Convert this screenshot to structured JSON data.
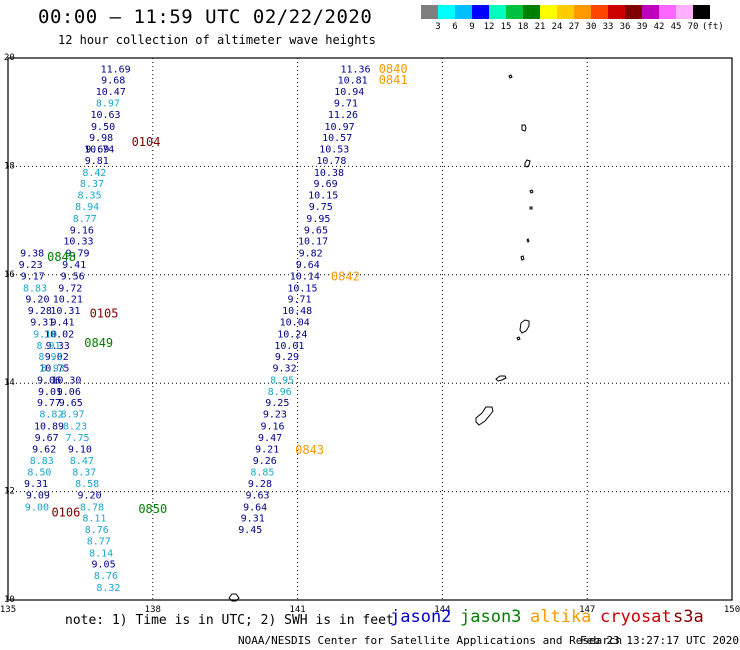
{
  "header": {
    "title": "00:00 – 11:59 UTC 02/22/2020",
    "subtitle": "12 hour collection of altimeter wave heights"
  },
  "colorbar": {
    "unit": "(ft)",
    "ticks": [
      "3",
      "6",
      "9",
      "12",
      "15",
      "18",
      "21",
      "24",
      "27",
      "30",
      "33",
      "36",
      "39",
      "42",
      "45",
      "70"
    ],
    "colors": [
      "#7f7f7f",
      "#00ffff",
      "#00bfff",
      "#0000ff",
      "#00ffbf",
      "#00c040",
      "#008000",
      "#ffff00",
      "#ffcc00",
      "#ff9900",
      "#ff4400",
      "#cc0000",
      "#800000",
      "#c000c0",
      "#ff66ff",
      "#ffb0ff",
      "#000000"
    ]
  },
  "map": {
    "lon_range": [
      135,
      150
    ],
    "lat_range": [
      10,
      20
    ],
    "lon_ticks": [
      "135",
      "138",
      "141",
      "144",
      "147",
      "150"
    ],
    "lat_ticks": [
      "20",
      "18",
      "16",
      "14",
      "12",
      "10"
    ],
    "grid_lines": "dotted"
  },
  "satellite_colors": {
    "jason2": "#00008b",
    "jason3": "#008000",
    "altika": "#ff9900",
    "cryosat": "#cc0000",
    "s3a": "#800000",
    "light": "#1aa7cc",
    "dark": "#00008b"
  },
  "passes": [
    {
      "label": "0840",
      "sat": "altika",
      "lon": 142.68,
      "lat": 19.8
    },
    {
      "label": "0841",
      "sat": "altika",
      "lon": 142.68,
      "lat": 19.59
    },
    {
      "label": "0842",
      "sat": "altika",
      "lon": 141.69,
      "lat": 15.97
    },
    {
      "label": "0843",
      "sat": "altika",
      "lon": 140.95,
      "lat": 12.77
    },
    {
      "label": "0104",
      "sat": "s3a",
      "lon": 137.56,
      "lat": 18.45
    },
    {
      "label": "0105",
      "sat": "s3a",
      "lon": 136.69,
      "lat": 15.29
    },
    {
      "label": "0106",
      "sat": "s3a",
      "lon": 135.9,
      "lat": 11.61
    },
    {
      "label": "0848",
      "sat": "jason3",
      "lon": 135.81,
      "lat": 16.33
    },
    {
      "label": "0849",
      "sat": "jason3",
      "lon": 136.58,
      "lat": 14.74
    },
    {
      "label": "0850",
      "sat": "jason3",
      "lon": 137.7,
      "lat": 11.68
    }
  ],
  "tracks": [
    {
      "name": "track-141",
      "points": [
        {
          "v": "11.36",
          "lon": 142.2,
          "lat": 19.8,
          "c": "dark"
        },
        {
          "v": "10.81",
          "lon": 142.14,
          "lat": 19.59,
          "c": "dark"
        },
        {
          "v": "10.94",
          "lon": 142.07,
          "lat": 19.38,
          "c": "dark"
        },
        {
          "v": "9.71",
          "lon": 142.0,
          "lat": 19.17,
          "c": "dark"
        },
        {
          "v": "11.26",
          "lon": 141.94,
          "lat": 18.96,
          "c": "dark"
        },
        {
          "v": "10.97",
          "lon": 141.87,
          "lat": 18.74,
          "c": "dark"
        },
        {
          "v": "10.57",
          "lon": 141.82,
          "lat": 18.53,
          "c": "dark"
        },
        {
          "v": "10.53",
          "lon": 141.76,
          "lat": 18.32,
          "c": "dark"
        },
        {
          "v": "10.78",
          "lon": 141.7,
          "lat": 18.11,
          "c": "dark"
        },
        {
          "v": "10.38",
          "lon": 141.65,
          "lat": 17.89,
          "c": "dark"
        },
        {
          "v": "9.69",
          "lon": 141.58,
          "lat": 17.68,
          "c": "dark"
        },
        {
          "v": "10.15",
          "lon": 141.53,
          "lat": 17.47,
          "c": "dark"
        },
        {
          "v": "9.75",
          "lon": 141.48,
          "lat": 17.26,
          "c": "dark"
        },
        {
          "v": "9.95",
          "lon": 141.43,
          "lat": 17.04,
          "c": "dark"
        },
        {
          "v": "9.65",
          "lon": 141.38,
          "lat": 16.83,
          "c": "dark"
        },
        {
          "v": "10.17",
          "lon": 141.32,
          "lat": 16.62,
          "c": "dark"
        },
        {
          "v": "9.82",
          "lon": 141.27,
          "lat": 16.4,
          "c": "dark"
        },
        {
          "v": "9.64",
          "lon": 141.21,
          "lat": 16.19,
          "c": "dark"
        },
        {
          "v": "10.14",
          "lon": 141.15,
          "lat": 15.98,
          "c": "dark"
        },
        {
          "v": "10.15",
          "lon": 141.1,
          "lat": 15.76,
          "c": "dark"
        },
        {
          "v": "9.71",
          "lon": 141.04,
          "lat": 15.55,
          "c": "dark"
        },
        {
          "v": "10.48",
          "lon": 140.99,
          "lat": 15.34,
          "c": "dark"
        },
        {
          "v": "10.04",
          "lon": 140.94,
          "lat": 15.13,
          "c": "dark"
        },
        {
          "v": "10.24",
          "lon": 140.89,
          "lat": 14.91,
          "c": "dark"
        },
        {
          "v": "10.01",
          "lon": 140.83,
          "lat": 14.7,
          "c": "dark"
        },
        {
          "v": "9.29",
          "lon": 140.78,
          "lat": 14.49,
          "c": "dark"
        },
        {
          "v": "9.32",
          "lon": 140.73,
          "lat": 14.28,
          "c": "dark"
        },
        {
          "v": "8.95",
          "lon": 140.68,
          "lat": 14.06,
          "c": "light"
        },
        {
          "v": "8.96",
          "lon": 140.63,
          "lat": 13.85,
          "c": "light"
        },
        {
          "v": "9.25",
          "lon": 140.58,
          "lat": 13.64,
          "c": "dark"
        },
        {
          "v": "9.23",
          "lon": 140.53,
          "lat": 13.43,
          "c": "dark"
        },
        {
          "v": "9.16",
          "lon": 140.48,
          "lat": 13.21,
          "c": "dark"
        },
        {
          "v": "9.47",
          "lon": 140.43,
          "lat": 13.0,
          "c": "dark"
        },
        {
          "v": "9.21",
          "lon": 140.37,
          "lat": 12.79,
          "c": "dark"
        },
        {
          "v": "9.26",
          "lon": 140.32,
          "lat": 12.57,
          "c": "dark"
        },
        {
          "v": "8.85",
          "lon": 140.27,
          "lat": 12.36,
          "c": "light"
        },
        {
          "v": "9.28",
          "lon": 140.22,
          "lat": 12.15,
          "c": "dark"
        },
        {
          "v": "9.63",
          "lon": 140.17,
          "lat": 11.94,
          "c": "dark"
        },
        {
          "v": "9.64",
          "lon": 140.12,
          "lat": 11.72,
          "c": "dark"
        },
        {
          "v": "9.31",
          "lon": 140.07,
          "lat": 11.51,
          "c": "dark"
        },
        {
          "v": "9.45",
          "lon": 140.02,
          "lat": 11.3,
          "c": "dark"
        }
      ]
    },
    {
      "name": "track-0104",
      "points": [
        {
          "v": "11.69",
          "lon": 137.23,
          "lat": 19.8,
          "c": "dark"
        },
        {
          "v": "9.68",
          "lon": 137.18,
          "lat": 19.59,
          "c": "dark"
        },
        {
          "v": "10.47",
          "lon": 137.13,
          "lat": 19.38,
          "c": "dark"
        },
        {
          "v": "8.97",
          "lon": 137.07,
          "lat": 19.17,
          "c": "light"
        },
        {
          "v": "10.63",
          "lon": 137.02,
          "lat": 18.96,
          "c": "dark"
        },
        {
          "v": "9.50",
          "lon": 136.97,
          "lat": 18.74,
          "c": "dark"
        },
        {
          "v": "9.98",
          "lon": 136.93,
          "lat": 18.53,
          "c": "dark"
        },
        {
          "v": "10.74",
          "lon": 136.89,
          "lat": 18.32,
          "c": "dark"
        },
        {
          "v": "9.81",
          "lon": 136.84,
          "lat": 18.11,
          "c": "dark"
        },
        {
          "v": "8.42",
          "lon": 136.79,
          "lat": 17.89,
          "c": "light"
        },
        {
          "v": "8.37",
          "lon": 136.74,
          "lat": 17.68,
          "c": "light"
        },
        {
          "v": "8.35",
          "lon": 136.69,
          "lat": 17.47,
          "c": "light"
        },
        {
          "v": "8.94",
          "lon": 136.64,
          "lat": 17.26,
          "c": "light"
        },
        {
          "v": "8.77",
          "lon": 136.59,
          "lat": 17.04,
          "c": "light"
        },
        {
          "v": "9.16",
          "lon": 136.53,
          "lat": 16.83,
          "c": "dark"
        },
        {
          "v": "10.33",
          "lon": 136.46,
          "lat": 16.62,
          "c": "dark"
        },
        {
          "v": "9.79",
          "lon": 136.44,
          "lat": 16.4,
          "c": "dark"
        },
        {
          "v": "9.41",
          "lon": 136.37,
          "lat": 16.19,
          "c": "dark"
        },
        {
          "v": "9.56",
          "lon": 136.34,
          "lat": 15.98,
          "c": "dark"
        },
        {
          "v": "9.72",
          "lon": 136.29,
          "lat": 15.76,
          "c": "dark"
        },
        {
          "v": "10.21",
          "lon": 136.24,
          "lat": 15.55,
          "c": "dark"
        },
        {
          "v": "10.31",
          "lon": 136.19,
          "lat": 15.34,
          "c": "dark"
        },
        {
          "v": "9.41",
          "lon": 136.13,
          "lat": 15.13,
          "c": "dark"
        },
        {
          "v": "10.02",
          "lon": 136.06,
          "lat": 14.91,
          "c": "dark"
        },
        {
          "v": "9.33",
          "lon": 136.03,
          "lat": 14.7,
          "c": "dark"
        },
        {
          "v": "9.02",
          "lon": 136.01,
          "lat": 14.49,
          "c": "dark"
        },
        {
          "v": "10.75",
          "lon": 135.96,
          "lat": 14.28,
          "c": "dark"
        },
        {
          "v": "10.30",
          "lon": 136.21,
          "lat": 14.06,
          "c": "dark"
        },
        {
          "v": "9.06",
          "lon": 136.26,
          "lat": 13.85,
          "c": "dark"
        },
        {
          "v": "9.65",
          "lon": 136.3,
          "lat": 13.64,
          "c": "dark"
        },
        {
          "v": "8.97",
          "lon": 136.34,
          "lat": 13.43,
          "c": "light"
        },
        {
          "v": "8.23",
          "lon": 136.39,
          "lat": 13.21,
          "c": "light"
        },
        {
          "v": "7.75",
          "lon": 136.44,
          "lat": 13.0,
          "c": "light"
        },
        {
          "v": "9.10",
          "lon": 136.49,
          "lat": 12.79,
          "c": "dark"
        },
        {
          "v": "8.47",
          "lon": 136.53,
          "lat": 12.57,
          "c": "light"
        },
        {
          "v": "8.37",
          "lon": 136.58,
          "lat": 12.36,
          "c": "light"
        },
        {
          "v": "8.58",
          "lon": 136.64,
          "lat": 12.15,
          "c": "light"
        },
        {
          "v": "9.20",
          "lon": 136.69,
          "lat": 11.94,
          "c": "dark"
        },
        {
          "v": "8.78",
          "lon": 136.74,
          "lat": 11.72,
          "c": "light"
        },
        {
          "v": "8.11",
          "lon": 136.79,
          "lat": 11.51,
          "c": "light"
        },
        {
          "v": "8.76",
          "lon": 136.84,
          "lat": 11.3,
          "c": "light"
        },
        {
          "v": "8.77",
          "lon": 136.88,
          "lat": 11.09,
          "c": "light"
        },
        {
          "v": "8.14",
          "lon": 136.93,
          "lat": 10.87,
          "c": "light"
        },
        {
          "v": "9.05",
          "lon": 136.98,
          "lat": 10.66,
          "c": "dark"
        },
        {
          "v": "8.76",
          "lon": 137.03,
          "lat": 10.45,
          "c": "light"
        },
        {
          "v": "8.32",
          "lon": 137.08,
          "lat": 10.23,
          "c": "light"
        }
      ]
    },
    {
      "name": "track-0105",
      "points": [
        {
          "v": "9.69",
          "lon": 136.85,
          "lat": 18.32,
          "c": "dark"
        },
        {
          "v": "9.38",
          "lon": 135.5,
          "lat": 16.4,
          "c": "dark"
        },
        {
          "v": "9.23",
          "lon": 135.47,
          "lat": 16.19,
          "c": "dark"
        },
        {
          "v": "9.17",
          "lon": 135.51,
          "lat": 15.98,
          "c": "dark"
        },
        {
          "v": "8.83",
          "lon": 135.56,
          "lat": 15.76,
          "c": "light"
        },
        {
          "v": "9.20",
          "lon": 135.61,
          "lat": 15.55,
          "c": "dark"
        },
        {
          "v": "9.28",
          "lon": 135.66,
          "lat": 15.34,
          "c": "dark"
        },
        {
          "v": "9.31",
          "lon": 135.71,
          "lat": 15.13,
          "c": "dark"
        },
        {
          "v": "9.10",
          "lon": 135.77,
          "lat": 14.91,
          "c": "light"
        },
        {
          "v": "8.91",
          "lon": 135.84,
          "lat": 14.7,
          "c": "light"
        },
        {
          "v": "8.93",
          "lon": 135.88,
          "lat": 14.49,
          "c": "light"
        },
        {
          "v": "8.93",
          "lon": 135.93,
          "lat": 14.28,
          "c": "light"
        },
        {
          "v": "9.06",
          "lon": 135.85,
          "lat": 14.06,
          "c": "dark"
        },
        {
          "v": "9.01",
          "lon": 135.87,
          "lat": 13.85,
          "c": "dark"
        },
        {
          "v": "9.77",
          "lon": 135.85,
          "lat": 13.64,
          "c": "dark"
        },
        {
          "v": "8.82",
          "lon": 135.9,
          "lat": 13.43,
          "c": "light"
        },
        {
          "v": "10.89",
          "lon": 135.85,
          "lat": 13.21,
          "c": "dark"
        },
        {
          "v": "9.67",
          "lon": 135.8,
          "lat": 13.0,
          "c": "dark"
        },
        {
          "v": "9.62",
          "lon": 135.75,
          "lat": 12.79,
          "c": "dark"
        },
        {
          "v": "8.83",
          "lon": 135.7,
          "lat": 12.57,
          "c": "light"
        },
        {
          "v": "8.50",
          "lon": 135.65,
          "lat": 12.36,
          "c": "light"
        },
        {
          "v": "9.31",
          "lon": 135.58,
          "lat": 12.15,
          "c": "dark"
        },
        {
          "v": "9.09",
          "lon": 135.62,
          "lat": 11.94,
          "c": "dark"
        },
        {
          "v": "9.00",
          "lon": 135.6,
          "lat": 11.72,
          "c": "light"
        }
      ]
    }
  ],
  "footer": {
    "note": "note: 1) Time is in UTC; 2) SWH is in feet",
    "legend": [
      {
        "name": "jason2",
        "color": "#0000cc"
      },
      {
        "name": "jason3",
        "color": "#008000"
      },
      {
        "name": "altika",
        "color": "#ff9900"
      },
      {
        "name": "cryosat",
        "color": "#cc0000"
      },
      {
        "name": "s3a",
        "color": "#800000"
      }
    ],
    "credit": "NOAA/NESDIS Center for Satellite Applications and Research",
    "timestamp": "Feb 23 13:27:17 UTC 2020"
  }
}
